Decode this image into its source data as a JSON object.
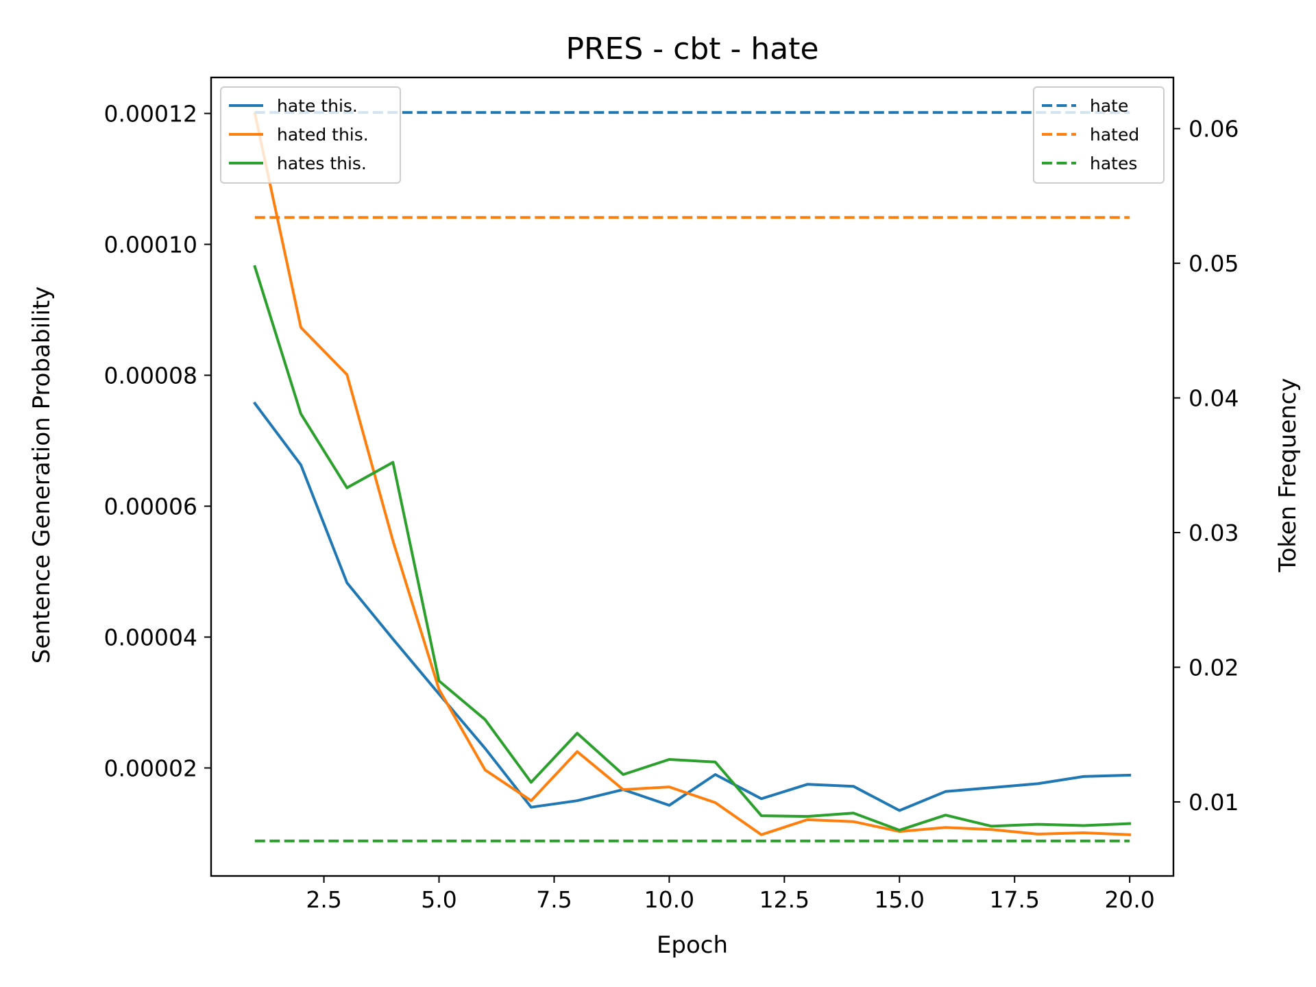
{
  "chart_data": {
    "type": "line",
    "title": "PRES - cbt - hate",
    "xlabel": "Epoch",
    "ylabel": "Sentence Generation Probability",
    "y2label": "Token Frequency",
    "xlim": [
      0.05,
      20.95
    ],
    "ylim": [
      3.5e-06,
      0.0001255
    ],
    "y2lim": [
      0.0045,
      0.0638
    ],
    "xticks": [
      2.5,
      5.0,
      7.5,
      10.0,
      12.5,
      15.0,
      17.5,
      20.0
    ],
    "xtick_labels": [
      "2.5",
      "5.0",
      "7.5",
      "10.0",
      "12.5",
      "15.0",
      "17.5",
      "20.0"
    ],
    "yticks": [
      2e-05,
      4e-05,
      6e-05,
      8e-05,
      0.0001,
      0.00012
    ],
    "ytick_labels": [
      "0.00002",
      "0.00004",
      "0.00006",
      "0.00008",
      "0.00010",
      "0.00012"
    ],
    "y2ticks": [
      0.01,
      0.02,
      0.03,
      0.04,
      0.05,
      0.06
    ],
    "y2tick_labels": [
      "0.01",
      "0.02",
      "0.03",
      "0.04",
      "0.05",
      "0.06"
    ],
    "grid": false,
    "x": [
      1,
      2,
      3,
      4,
      5,
      6,
      7,
      8,
      9,
      10,
      11,
      12,
      13,
      14,
      15,
      16,
      17,
      18,
      19,
      20
    ],
    "series": [
      {
        "name": "hate this.",
        "axis": "left",
        "style": "solid",
        "color": "#1f77b4",
        "values": [
          7.57e-05,
          6.63e-05,
          4.83e-05,
          3.97e-05,
          3.13e-05,
          2.3e-05,
          1.4e-05,
          1.5e-05,
          1.67e-05,
          1.43e-05,
          1.9e-05,
          1.53e-05,
          1.75e-05,
          1.72e-05,
          1.35e-05,
          1.64e-05,
          1.7e-05,
          1.76e-05,
          1.87e-05,
          1.89e-05
        ]
      },
      {
        "name": "hated this.",
        "axis": "left",
        "style": "solid",
        "color": "#ff7f0e",
        "values": [
          0.00012,
          8.73e-05,
          8.01e-05,
          5.47e-05,
          3.2e-05,
          1.97e-05,
          1.5e-05,
          2.25e-05,
          1.67e-05,
          1.71e-05,
          1.47e-05,
          9.8e-06,
          1.21e-05,
          1.18e-05,
          1.03e-05,
          1.09e-05,
          1.06e-05,
          9.9e-06,
          1.01e-05,
          9.8e-06
        ]
      },
      {
        "name": "hates this.",
        "axis": "left",
        "style": "solid",
        "color": "#2ca02c",
        "values": [
          9.66e-05,
          7.41e-05,
          6.28e-05,
          6.67e-05,
          3.33e-05,
          2.74e-05,
          1.78e-05,
          2.53e-05,
          1.9e-05,
          2.13e-05,
          2.09e-05,
          1.27e-05,
          1.26e-05,
          1.31e-05,
          1.05e-05,
          1.28e-05,
          1.11e-05,
          1.14e-05,
          1.12e-05,
          1.15e-05
        ]
      },
      {
        "name": "hate",
        "axis": "right",
        "style": "dashed",
        "color": "#1f77b4",
        "values": [
          0.0612,
          0.0612,
          0.0612,
          0.0612,
          0.0612,
          0.0612,
          0.0612,
          0.0612,
          0.0612,
          0.0612,
          0.0612,
          0.0612,
          0.0612,
          0.0612,
          0.0612,
          0.0612,
          0.0612,
          0.0612,
          0.0612,
          0.0612
        ]
      },
      {
        "name": "hated",
        "axis": "right",
        "style": "dashed",
        "color": "#ff7f0e",
        "values": [
          0.0534,
          0.0534,
          0.0534,
          0.0534,
          0.0534,
          0.0534,
          0.0534,
          0.0534,
          0.0534,
          0.0534,
          0.0534,
          0.0534,
          0.0534,
          0.0534,
          0.0534,
          0.0534,
          0.0534,
          0.0534,
          0.0534,
          0.0534
        ]
      },
      {
        "name": "hates",
        "axis": "right",
        "style": "dashed",
        "color": "#2ca02c",
        "values": [
          0.0071,
          0.0071,
          0.0071,
          0.0071,
          0.0071,
          0.0071,
          0.0071,
          0.0071,
          0.0071,
          0.0071,
          0.0071,
          0.0071,
          0.0071,
          0.0071,
          0.0071,
          0.0071,
          0.0071,
          0.0071,
          0.0071,
          0.0071
        ]
      }
    ],
    "legends": [
      {
        "placement": "upper left",
        "entries": [
          "hate this.",
          "hated this.",
          "hates this."
        ]
      },
      {
        "placement": "upper right",
        "entries": [
          "hate",
          "hated",
          "hates"
        ]
      }
    ]
  }
}
